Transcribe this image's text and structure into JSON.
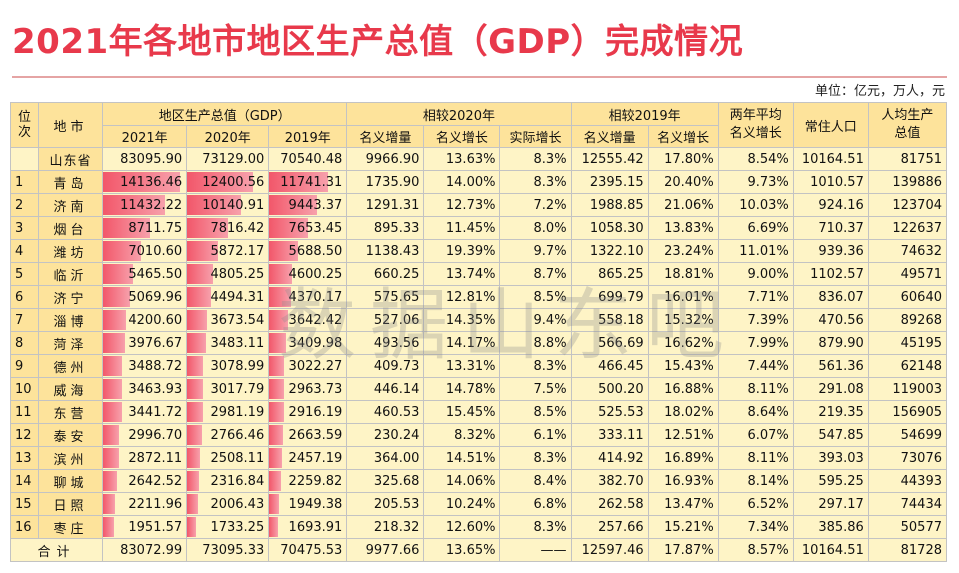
{
  "title": "2021年各地市地区生产总值（GDP）完成情况",
  "unit": "单位：亿元，万人，元",
  "watermark": "数据山东吧",
  "colors": {
    "title": "#e8394b",
    "header_bg": "#fde39b",
    "cell_bg": "#fef4c6",
    "bar": "#f2576a"
  },
  "headers": {
    "rank": "位次",
    "city": "地市",
    "gdp_group": "地区生产总值（GDP）",
    "vs2020_group": "相较2020年",
    "vs2019_group": "相较2019年",
    "two_year": "两年平均名义增长",
    "pop": "常住人口",
    "per_capita": "人均生产总值",
    "y2021": "2021年",
    "y2020": "2020年",
    "y2019": "2019年",
    "nominal_incr": "名义增量",
    "nominal_growth": "名义增长",
    "real_growth": "实际增长",
    "nominal_incr_2": "名义增量",
    "nominal_growth_2": "名义增长"
  },
  "province": [
    "山东省",
    "83095.90",
    "73129.00",
    "70540.48",
    "9966.90",
    "13.63%",
    "8.3%",
    "12555.42",
    "17.80%",
    "8.54%",
    "10164.51",
    "81751"
  ],
  "rows": [
    [
      "1",
      "青岛",
      "14136.46",
      "12400.56",
      "11741.31",
      "1735.90",
      "14.00%",
      "8.3%",
      "2395.15",
      "20.40%",
      "9.73%",
      "1010.57",
      "139886"
    ],
    [
      "2",
      "济南",
      "11432.22",
      "10140.91",
      "9443.37",
      "1291.31",
      "12.73%",
      "7.2%",
      "1988.85",
      "21.06%",
      "10.03%",
      "924.16",
      "123704"
    ],
    [
      "3",
      "烟台",
      "8711.75",
      "7816.42",
      "7653.45",
      "895.33",
      "11.45%",
      "8.0%",
      "1058.30",
      "13.83%",
      "6.69%",
      "710.37",
      "122637"
    ],
    [
      "4",
      "潍坊",
      "7010.60",
      "5872.17",
      "5688.50",
      "1138.43",
      "19.39%",
      "9.7%",
      "1322.10",
      "23.24%",
      "11.01%",
      "939.36",
      "74632"
    ],
    [
      "5",
      "临沂",
      "5465.50",
      "4805.25",
      "4600.25",
      "660.25",
      "13.74%",
      "8.7%",
      "865.25",
      "18.81%",
      "9.00%",
      "1102.57",
      "49571"
    ],
    [
      "6",
      "济宁",
      "5069.96",
      "4494.31",
      "4370.17",
      "575.65",
      "12.81%",
      "8.5%",
      "699.79",
      "16.01%",
      "7.71%",
      "836.07",
      "60640"
    ],
    [
      "7",
      "淄博",
      "4200.60",
      "3673.54",
      "3642.42",
      "527.06",
      "14.35%",
      "9.4%",
      "558.18",
      "15.32%",
      "7.39%",
      "470.56",
      "89268"
    ],
    [
      "8",
      "菏泽",
      "3976.67",
      "3483.11",
      "3409.98",
      "493.56",
      "14.17%",
      "8.8%",
      "566.69",
      "16.62%",
      "7.99%",
      "879.90",
      "45195"
    ],
    [
      "9",
      "德州",
      "3488.72",
      "3078.99",
      "3022.27",
      "409.73",
      "13.31%",
      "8.3%",
      "466.45",
      "15.43%",
      "7.44%",
      "561.36",
      "62148"
    ],
    [
      "10",
      "威海",
      "3463.93",
      "3017.79",
      "2963.73",
      "446.14",
      "14.78%",
      "7.5%",
      "500.20",
      "16.88%",
      "8.11%",
      "291.08",
      "119003"
    ],
    [
      "11",
      "东营",
      "3441.72",
      "2981.19",
      "2916.19",
      "460.53",
      "15.45%",
      "8.5%",
      "525.53",
      "18.02%",
      "8.64%",
      "219.35",
      "156905"
    ],
    [
      "12",
      "泰安",
      "2996.70",
      "2766.46",
      "2663.59",
      "230.24",
      "8.32%",
      "6.1%",
      "333.11",
      "12.51%",
      "6.07%",
      "547.85",
      "54699"
    ],
    [
      "13",
      "滨州",
      "2872.11",
      "2508.11",
      "2457.19",
      "364.00",
      "14.51%",
      "8.3%",
      "414.92",
      "16.89%",
      "8.11%",
      "393.03",
      "73076"
    ],
    [
      "14",
      "聊城",
      "2642.52",
      "2316.84",
      "2259.82",
      "325.68",
      "14.06%",
      "8.4%",
      "382.70",
      "16.93%",
      "8.14%",
      "595.25",
      "44393"
    ],
    [
      "15",
      "日照",
      "2211.96",
      "2006.43",
      "1949.38",
      "205.53",
      "10.24%",
      "6.8%",
      "262.58",
      "13.47%",
      "6.52%",
      "297.17",
      "74434"
    ],
    [
      "16",
      "枣庄",
      "1951.57",
      "1733.25",
      "1693.91",
      "218.32",
      "12.60%",
      "8.3%",
      "257.66",
      "15.21%",
      "7.34%",
      "385.86",
      "50577"
    ]
  ],
  "total": [
    "合计",
    "83072.99",
    "73095.33",
    "70475.53",
    "9977.66",
    "13.65%",
    "——",
    "12597.46",
    "17.87%",
    "8.57%",
    "10164.51",
    "81728"
  ]
}
